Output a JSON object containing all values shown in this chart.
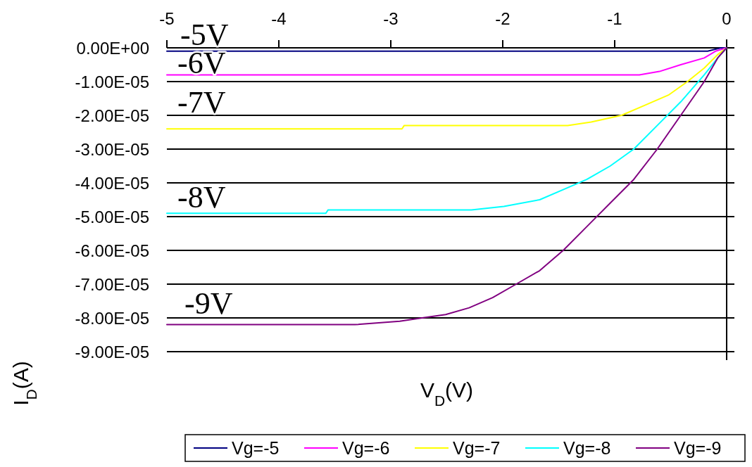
{
  "chart_data": {
    "type": "line",
    "xlabel": "V$_{D}$(V)",
    "ylabel": "I$_{D}$(A)",
    "xlim": [
      -5,
      0
    ],
    "xticks": [
      -5,
      -4,
      -3,
      -2,
      -1,
      0
    ],
    "ylim": [
      -9e-05,
      0
    ],
    "yticks": [
      {
        "value": 0,
        "label": "0.00E+00"
      },
      {
        "value": -1e-05,
        "label": "-1.00E-05"
      },
      {
        "value": -2e-05,
        "label": "-2.00E-05"
      },
      {
        "value": -3e-05,
        "label": "-3.00E-05"
      },
      {
        "value": -4e-05,
        "label": "-4.00E-05"
      },
      {
        "value": -5e-05,
        "label": "-5.00E-05"
      },
      {
        "value": -6e-05,
        "label": "-6.00E-05"
      },
      {
        "value": -7e-05,
        "label": "-7.00E-05"
      },
      {
        "value": -8e-05,
        "label": "-8.00E-05"
      },
      {
        "value": -9e-05,
        "label": "-9.00E-05"
      }
    ],
    "grid": "y",
    "legend": "bottom",
    "marker": "none",
    "line_style": "solid",
    "series": [
      {
        "name": "Vg=-5",
        "color": "#000080",
        "x": [
          -5,
          -0.17,
          -0.05,
          0
        ],
        "values": [
          -1e-06,
          -1e-06,
          0,
          0
        ]
      },
      {
        "name": "Vg=-6",
        "color": "#ff00ff",
        "x": [
          -5,
          -0.78,
          -0.6,
          -0.41,
          -0.2,
          -0.1,
          0
        ],
        "values": [
          -8e-06,
          -8e-06,
          -7e-06,
          -5e-06,
          -3e-06,
          -1e-06,
          0
        ]
      },
      {
        "name": "Vg=-7",
        "color": "#ffff00",
        "x": [
          -5,
          -2.9,
          -2.88,
          -1.42,
          -1.21,
          -0.94,
          -0.73,
          -0.52,
          -0.35,
          -0.2,
          -0.08,
          0
        ],
        "values": [
          -2.4e-05,
          -2.4e-05,
          -2.3e-05,
          -2.3e-05,
          -2.2e-05,
          -2e-05,
          -1.7e-05,
          -1.4e-05,
          -1e-05,
          -6e-06,
          -2e-06,
          0
        ]
      },
      {
        "name": "Vg=-8",
        "color": "#00ffff",
        "x": [
          -5,
          -3.58,
          -3.56,
          -2.28,
          -1.99,
          -1.67,
          -1.46,
          -1.25,
          -1.04,
          -0.83,
          -0.62,
          -0.41,
          -0.2,
          -0.08,
          0
        ],
        "values": [
          -4.9e-05,
          -4.9e-05,
          -4.8e-05,
          -4.8e-05,
          -4.7e-05,
          -4.5e-05,
          -4.2e-05,
          -3.9e-05,
          -3.5e-05,
          -3e-05,
          -2.3e-05,
          -1.6e-05,
          -8e-06,
          -3e-06,
          0
        ]
      },
      {
        "name": "Vg=-9",
        "color": "#800080",
        "x": [
          -5,
          -3.32,
          -2.92,
          -2.72,
          -2.51,
          -2.3,
          -2.09,
          -1.88,
          -1.67,
          -1.46,
          -1.25,
          -1.04,
          -0.83,
          -0.62,
          -0.41,
          -0.2,
          -0.08,
          0
        ],
        "values": [
          -8.2e-05,
          -8.2e-05,
          -8.1e-05,
          -8e-05,
          -7.9e-05,
          -7.7e-05,
          -7.4e-05,
          -7e-05,
          -6.6e-05,
          -6e-05,
          -5.3e-05,
          -4.6e-05,
          -3.9e-05,
          -3e-05,
          -2e-05,
          -1e-05,
          -3e-06,
          0
        ]
      }
    ],
    "annotations": [
      "-5V",
      "-6V",
      "-7V",
      "-8V",
      "-9V"
    ]
  }
}
